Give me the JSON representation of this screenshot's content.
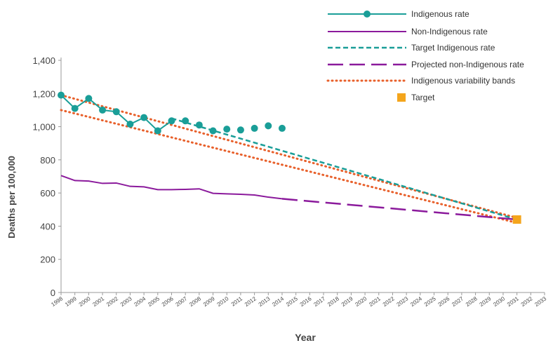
{
  "chart_data": {
    "type": "line",
    "xlabel": "Year",
    "ylabel": "Deaths per 100,000",
    "xlim": [
      1998,
      2033
    ],
    "ylim": [
      0,
      1400
    ],
    "y_ticks": [
      0,
      200,
      400,
      600,
      800,
      1000,
      1200,
      1400
    ],
    "y_tick_labels": [
      "0",
      "200",
      "400",
      "600",
      "800",
      "1,000",
      "1,200",
      "1,400"
    ],
    "x_ticks": [
      1998,
      1999,
      2000,
      2001,
      2002,
      2003,
      2004,
      2005,
      2006,
      2007,
      2008,
      2009,
      2010,
      2011,
      2012,
      2013,
      2014,
      2015,
      2016,
      2017,
      2018,
      2019,
      2020,
      2021,
      2022,
      2023,
      2024,
      2025,
      2026,
      2027,
      2028,
      2029,
      2030,
      2031,
      2032,
      2033
    ],
    "grid": false,
    "legend_position": "top-right",
    "series": [
      {
        "name": "Indigenous rate",
        "color": "#1a9e98",
        "style": "solid-markers",
        "x": [
          1998,
          1999,
          2000,
          2001,
          2002,
          2003,
          2004,
          2005,
          2006,
          2007,
          2008,
          2009,
          2010,
          2011,
          2012,
          2013,
          2014
        ],
        "y": [
          1190,
          1110,
          1170,
          1100,
          1090,
          1015,
          1055,
          975,
          1035,
          1035,
          1010,
          975,
          985,
          980,
          990,
          1005,
          990
        ],
        "line_through": 2006
      },
      {
        "name": "Non-Indigenous rate",
        "color": "#8b1a9c",
        "style": "solid",
        "x": [
          1998,
          1999,
          2000,
          2001,
          2002,
          2003,
          2004,
          2005,
          2006,
          2007,
          2008,
          2009,
          2010,
          2011,
          2012,
          2013,
          2014
        ],
        "y": [
          705,
          675,
          672,
          658,
          660,
          640,
          637,
          620,
          620,
          622,
          625,
          598,
          595,
          592,
          588,
          575,
          565
        ]
      },
      {
        "name": "Target Indigenous rate",
        "color": "#1a9e98",
        "style": "short-dash",
        "x": [
          2006,
          2031
        ],
        "y": [
          1050,
          440
        ]
      },
      {
        "name": "Projected non-Indigenous rate",
        "color": "#8b1a9c",
        "style": "long-dash",
        "x": [
          2014,
          2031
        ],
        "y": [
          565,
          440
        ]
      },
      {
        "name": "Indigenous variability bands",
        "color": "#e8602b",
        "style": "dotted",
        "bands": [
          {
            "x": [
              1998,
              2031
            ],
            "y": [
              1190,
              450
            ]
          },
          {
            "x": [
              1998,
              2031
            ],
            "y": [
              1100,
              420
            ]
          }
        ]
      },
      {
        "name": "Target",
        "color": "#f4a51c",
        "style": "square-marker",
        "x": [
          2031
        ],
        "y": [
          440
        ]
      }
    ]
  }
}
